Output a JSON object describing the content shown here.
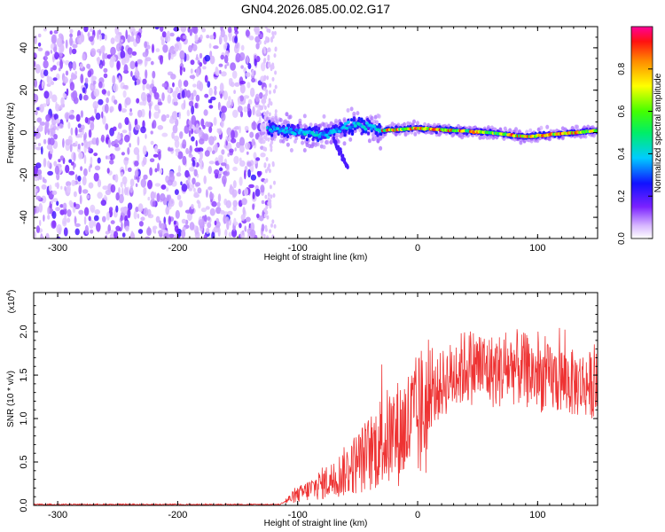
{
  "title": "GN04.2026.085.00.02.G17",
  "chart_data": [
    {
      "type": "heatmap",
      "title": "GN04.2026.085.00.02.G17",
      "xlabel": "Height of straight line (km)",
      "ylabel": "Frequency (Hz)",
      "xlim": [
        -320,
        150
      ],
      "ylim": [
        -50,
        50
      ],
      "xticks": [
        -300,
        -200,
        -100,
        0,
        100
      ],
      "xtick_labels": [
        "-300",
        "-200",
        "-100",
        "0",
        "100"
      ],
      "yticks": [
        -40,
        -20,
        0,
        20,
        40
      ],
      "ytick_labels": [
        "-40",
        "-20",
        "0",
        "20",
        "40"
      ],
      "colorbar": {
        "label": "Normalized spectral amplitude",
        "range": [
          0,
          1
        ],
        "ticks": [
          0.0,
          0.2,
          0.4,
          0.6,
          0.8
        ],
        "tick_labels": [
          "0.0",
          "0.2",
          "0.4",
          "0.6",
          "0.8"
        ]
      },
      "regions": [
        {
          "name": "noise",
          "x_range": [
            -320,
            -125
          ],
          "freq_range": [
            -50,
            50
          ],
          "amplitude": 0.15
        },
        {
          "name": "signal",
          "x_range": [
            -125,
            150
          ],
          "center_freq_hz": [
            [
              -125,
              2
            ],
            [
              -80,
              -1
            ],
            [
              -50,
              4
            ],
            [
              -30,
              1
            ],
            [
              0,
              2
            ],
            [
              60,
              0
            ],
            [
              90,
              -2
            ],
            [
              150,
              1
            ]
          ],
          "amplitude": [
            0.3,
            0.95
          ]
        }
      ]
    },
    {
      "type": "line",
      "xlabel": "Height of straight line (km)",
      "ylabel": "SNR (10 * v/v)",
      "multiplier_label": "(x10",
      "multiplier_exp": "4",
      "multiplier_close": ")",
      "xlim": [
        -320,
        150
      ],
      "ylim": [
        0,
        2.45
      ],
      "xticks": [
        -300,
        -200,
        -100,
        0,
        100
      ],
      "xtick_labels": [
        "-300",
        "-200",
        "-100",
        "0",
        "100"
      ],
      "yticks": [
        0.0,
        0.5,
        1.0,
        1.5,
        2.0
      ],
      "ytick_labels": [
        "0.0",
        "0.5",
        "1.0",
        "1.5",
        "2.0"
      ],
      "series": [
        {
          "name": "SNR",
          "color": "#ee3333",
          "x": [
            -320,
            -200,
            -115,
            -110,
            -100,
            -90,
            -80,
            -70,
            -60,
            -50,
            -40,
            -30,
            -20,
            -10,
            0,
            10,
            20,
            30,
            40,
            50,
            60,
            70,
            80,
            90,
            100,
            110,
            120,
            130,
            140,
            150
          ],
          "y": [
            0.01,
            0.01,
            0.01,
            0.05,
            0.12,
            0.18,
            0.25,
            0.3,
            0.4,
            0.5,
            0.6,
            0.75,
            0.8,
            0.9,
            1.0,
            1.2,
            1.4,
            1.5,
            1.6,
            1.6,
            1.55,
            1.55,
            1.6,
            1.55,
            1.5,
            1.45,
            1.45,
            1.4,
            1.4,
            1.38
          ]
        }
      ]
    }
  ]
}
